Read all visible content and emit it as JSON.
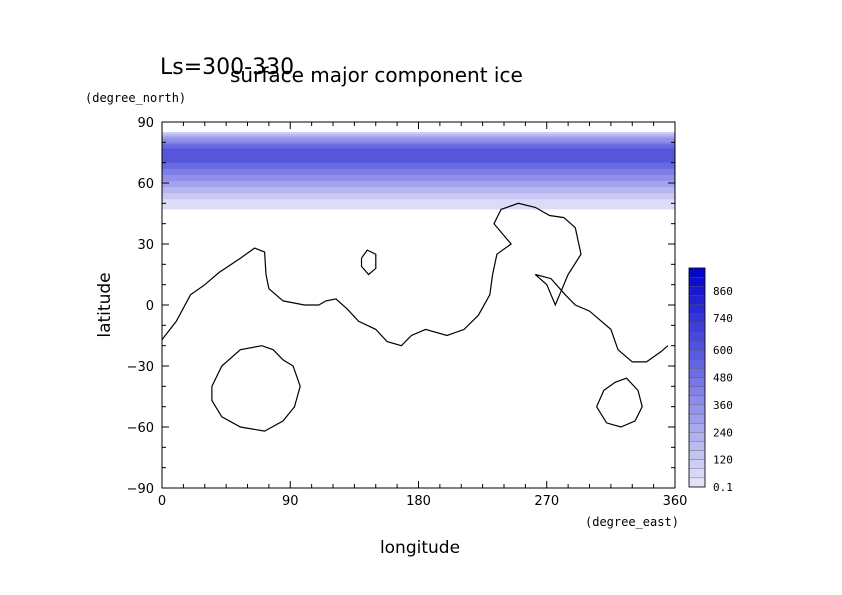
{
  "chart_data": {
    "type": "heatmap",
    "overlay_title": "Ls=300-330",
    "title": "surface major component ice",
    "xlabel": "longitude",
    "ylabel": "latitude",
    "x_units": "(degree_east)",
    "y_units": "(degree_north)",
    "xlim": [
      0,
      360
    ],
    "ylim": [
      -90,
      90
    ],
    "x_ticks": [
      "0",
      "90",
      "180",
      "270",
      "360"
    ],
    "y_ticks": [
      "90",
      "60",
      "30",
      "0",
      "−30",
      "−60",
      "−90"
    ],
    "x_tick_values": [
      0,
      90,
      180,
      270,
      360
    ],
    "y_tick_values": [
      90,
      60,
      30,
      0,
      -30,
      -60,
      -90
    ],
    "colorbar": {
      "labels": [
        "0.1",
        "120",
        "240",
        "360",
        "480",
        "600",
        "740",
        "860"
      ],
      "label_values": [
        0.1,
        120,
        240,
        360,
        480,
        600,
        740,
        860
      ],
      "max": 960,
      "low_color": "#e6e6fa",
      "high_color": "#0000cc"
    },
    "ice_bands": [
      {
        "lat_from": 47,
        "lat_to": 85,
        "value": 40
      },
      {
        "lat_from": 52,
        "lat_to": 85,
        "value": 120
      },
      {
        "lat_from": 55,
        "lat_to": 84,
        "value": 200
      },
      {
        "lat_from": 58,
        "lat_to": 83,
        "value": 280
      },
      {
        "lat_from": 61,
        "lat_to": 82,
        "value": 360
      },
      {
        "lat_from": 64,
        "lat_to": 80,
        "value": 440
      },
      {
        "lat_from": 67,
        "lat_to": 79,
        "value": 520
      },
      {
        "lat_from": 70,
        "lat_to": 77,
        "value": 600
      }
    ],
    "contours": [
      {
        "name": "continent",
        "points": [
          [
            0,
            -17
          ],
          [
            10,
            -8
          ],
          [
            20,
            5
          ],
          [
            30,
            10
          ],
          [
            40,
            16
          ],
          [
            55,
            23
          ],
          [
            65,
            28
          ],
          [
            72,
            26
          ],
          [
            73,
            15
          ],
          [
            75,
            8
          ],
          [
            85,
            2
          ],
          [
            100,
            0
          ],
          [
            110,
            0
          ],
          [
            115,
            2
          ],
          [
            122,
            3
          ],
          [
            130,
            -2
          ],
          [
            138,
            -8
          ],
          [
            150,
            -12
          ],
          [
            158,
            -18
          ],
          [
            168,
            -20
          ],
          [
            175,
            -15
          ],
          [
            185,
            -12
          ],
          [
            200,
            -15
          ],
          [
            212,
            -12
          ],
          [
            222,
            -5
          ],
          [
            230,
            5
          ],
          [
            232,
            15
          ],
          [
            235,
            25
          ],
          [
            245,
            30
          ],
          [
            233,
            40
          ],
          [
            238,
            47
          ],
          [
            250,
            50
          ],
          [
            262,
            48
          ],
          [
            272,
            44
          ],
          [
            282,
            43
          ],
          [
            290,
            38
          ],
          [
            294,
            25
          ],
          [
            285,
            15
          ],
          [
            276,
            0
          ],
          [
            270,
            10
          ],
          [
            262,
            15
          ],
          [
            273,
            13
          ],
          [
            283,
            5
          ],
          [
            290,
            0
          ],
          [
            300,
            -3
          ],
          [
            315,
            -12
          ],
          [
            320,
            -22
          ],
          [
            325,
            -25
          ],
          [
            330,
            -28
          ],
          [
            340,
            -28
          ],
          [
            350,
            -23
          ],
          [
            355,
            -20
          ]
        ]
      },
      {
        "name": "island-north",
        "points": [
          [
            140,
            23
          ],
          [
            144,
            27
          ],
          [
            150,
            25
          ],
          [
            150,
            18
          ],
          [
            145,
            15
          ],
          [
            140,
            19
          ],
          [
            140,
            23
          ]
        ]
      },
      {
        "name": "island-south-west",
        "points": [
          [
            35,
            -40
          ],
          [
            42,
            -30
          ],
          [
            55,
            -22
          ],
          [
            70,
            -20
          ],
          [
            78,
            -22
          ],
          [
            85,
            -27
          ],
          [
            92,
            -30
          ],
          [
            97,
            -40
          ],
          [
            93,
            -50
          ],
          [
            85,
            -57
          ],
          [
            72,
            -62
          ],
          [
            55,
            -60
          ],
          [
            42,
            -55
          ],
          [
            35,
            -47
          ],
          [
            35,
            -40
          ]
        ]
      },
      {
        "name": "island-south-east",
        "points": [
          [
            305,
            -50
          ],
          [
            310,
            -42
          ],
          [
            318,
            -38
          ],
          [
            326,
            -36
          ],
          [
            334,
            -42
          ],
          [
            337,
            -50
          ],
          [
            332,
            -57
          ],
          [
            322,
            -60
          ],
          [
            312,
            -58
          ],
          [
            305,
            -50
          ]
        ]
      }
    ]
  }
}
